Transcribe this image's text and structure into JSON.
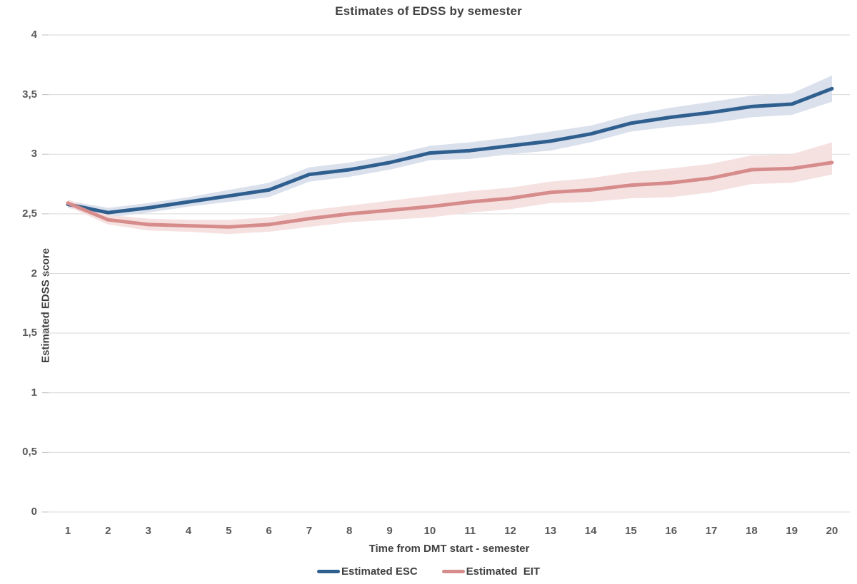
{
  "chart": {
    "title": "Estimates of EDSS by semester",
    "x_axis_title": "Time from DMT start - semester",
    "y_axis_title": "Estimated EDSS score"
  },
  "chart_data": {
    "type": "line",
    "title": "Estimates of EDSS by semester",
    "xlabel": "Time from DMT start - semester",
    "ylabel": "Estimated EDSS score",
    "x": [
      1,
      2,
      3,
      4,
      5,
      6,
      7,
      8,
      9,
      10,
      11,
      12,
      13,
      14,
      15,
      16,
      17,
      18,
      19,
      20
    ],
    "x_tick_labels": [
      "1",
      "2",
      "3",
      "4",
      "5",
      "6",
      "7",
      "8",
      "9",
      "10",
      "11",
      "12",
      "13",
      "14",
      "15",
      "16",
      "17",
      "18",
      "19",
      "20"
    ],
    "y_tick_labels": [
      "0",
      "0,5",
      "1",
      "1,5",
      "2",
      "2,5",
      "3",
      "3,5",
      "4"
    ],
    "y_tick_values": [
      0,
      0.5,
      1,
      1.5,
      2,
      2.5,
      3,
      3.5,
      4
    ],
    "ylim": [
      0,
      4
    ],
    "grid": "horizontal-only",
    "decimal_separator": ",",
    "legend_position": "bottom-center",
    "series": [
      {
        "name": "Estimated ESC",
        "color": "#2F5F8F",
        "band_color": "#DAE0EC",
        "values": [
          2.58,
          2.51,
          2.55,
          2.6,
          2.65,
          2.7,
          2.83,
          2.87,
          2.93,
          3.01,
          3.03,
          3.07,
          3.11,
          3.17,
          3.26,
          3.31,
          3.35,
          3.4,
          3.42,
          3.55
        ],
        "upper": [
          2.61,
          2.55,
          2.59,
          2.64,
          2.7,
          2.76,
          2.89,
          2.93,
          2.99,
          3.07,
          3.1,
          3.14,
          3.19,
          3.24,
          3.33,
          3.39,
          3.44,
          3.49,
          3.51,
          3.66
        ],
        "lower": [
          2.55,
          2.47,
          2.51,
          2.56,
          2.6,
          2.64,
          2.77,
          2.81,
          2.87,
          2.95,
          2.96,
          3.0,
          3.03,
          3.1,
          3.19,
          3.23,
          3.26,
          3.31,
          3.33,
          3.44
        ]
      },
      {
        "name": "Estimated  EIT",
        "color": "#D78C8C",
        "band_color": "#F6E1E1",
        "values": [
          2.59,
          2.45,
          2.41,
          2.4,
          2.39,
          2.41,
          2.46,
          2.5,
          2.53,
          2.56,
          2.6,
          2.63,
          2.68,
          2.7,
          2.74,
          2.76,
          2.8,
          2.87,
          2.88,
          2.93
        ],
        "upper": [
          2.62,
          2.49,
          2.46,
          2.45,
          2.45,
          2.47,
          2.53,
          2.57,
          2.61,
          2.65,
          2.69,
          2.72,
          2.77,
          2.8,
          2.85,
          2.88,
          2.92,
          2.99,
          3.0,
          3.1
        ],
        "lower": [
          2.56,
          2.41,
          2.36,
          2.35,
          2.33,
          2.35,
          2.39,
          2.43,
          2.45,
          2.47,
          2.51,
          2.54,
          2.59,
          2.6,
          2.63,
          2.64,
          2.68,
          2.75,
          2.76,
          2.83
        ]
      }
    ],
    "colors": {
      "gridline": "#D9D9D9",
      "tick": "#BFBFBF",
      "title_text": "#404040",
      "axis_text": "#595959",
      "background": "#FFFFFF"
    }
  }
}
